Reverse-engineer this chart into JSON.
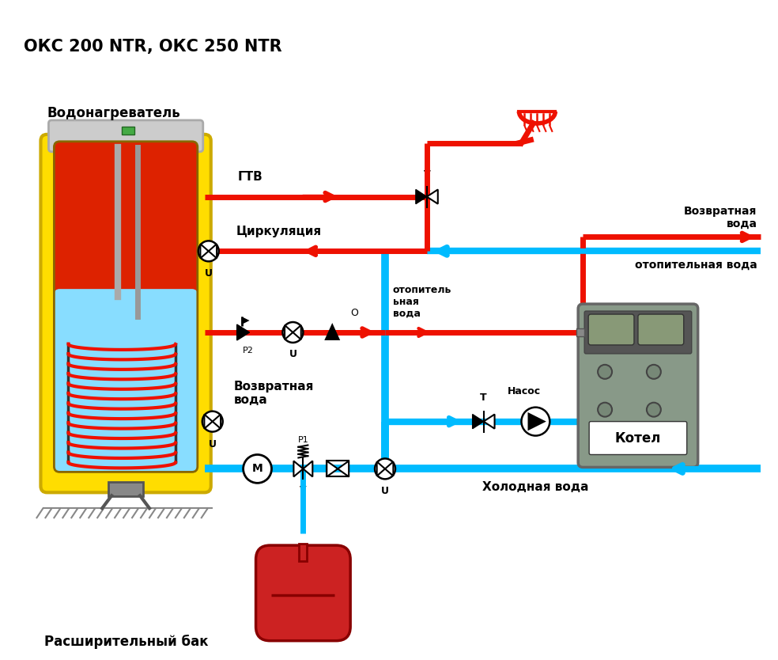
{
  "title": "ОКС 200 NTR, ОКС 250 NTR",
  "bg": "#ffffff",
  "red": "#ee1100",
  "blue": "#00bbff",
  "yellow": "#ffdd00",
  "dark_yellow": "#ccaa00",
  "inner_red": "#dd2200",
  "inner_blue": "#88ddff",
  "boiler_fg": "#889988",
  "pipe_lw": 5,
  "labels": {
    "vodona": "Водонагреватель",
    "gtv": "ГТВ",
    "cirk": "Циркуляция",
    "otop_col": "отопитель\nьная\nвода",
    "vozv_top": "Возвратная\nвода",
    "otop_right": "отопительная вода",
    "vozv_bot": "Возвратная\nвода",
    "holod": "Холодная вода",
    "rashir": "Расширительный бак",
    "kotel": "Котел",
    "nasos": "Насос"
  }
}
